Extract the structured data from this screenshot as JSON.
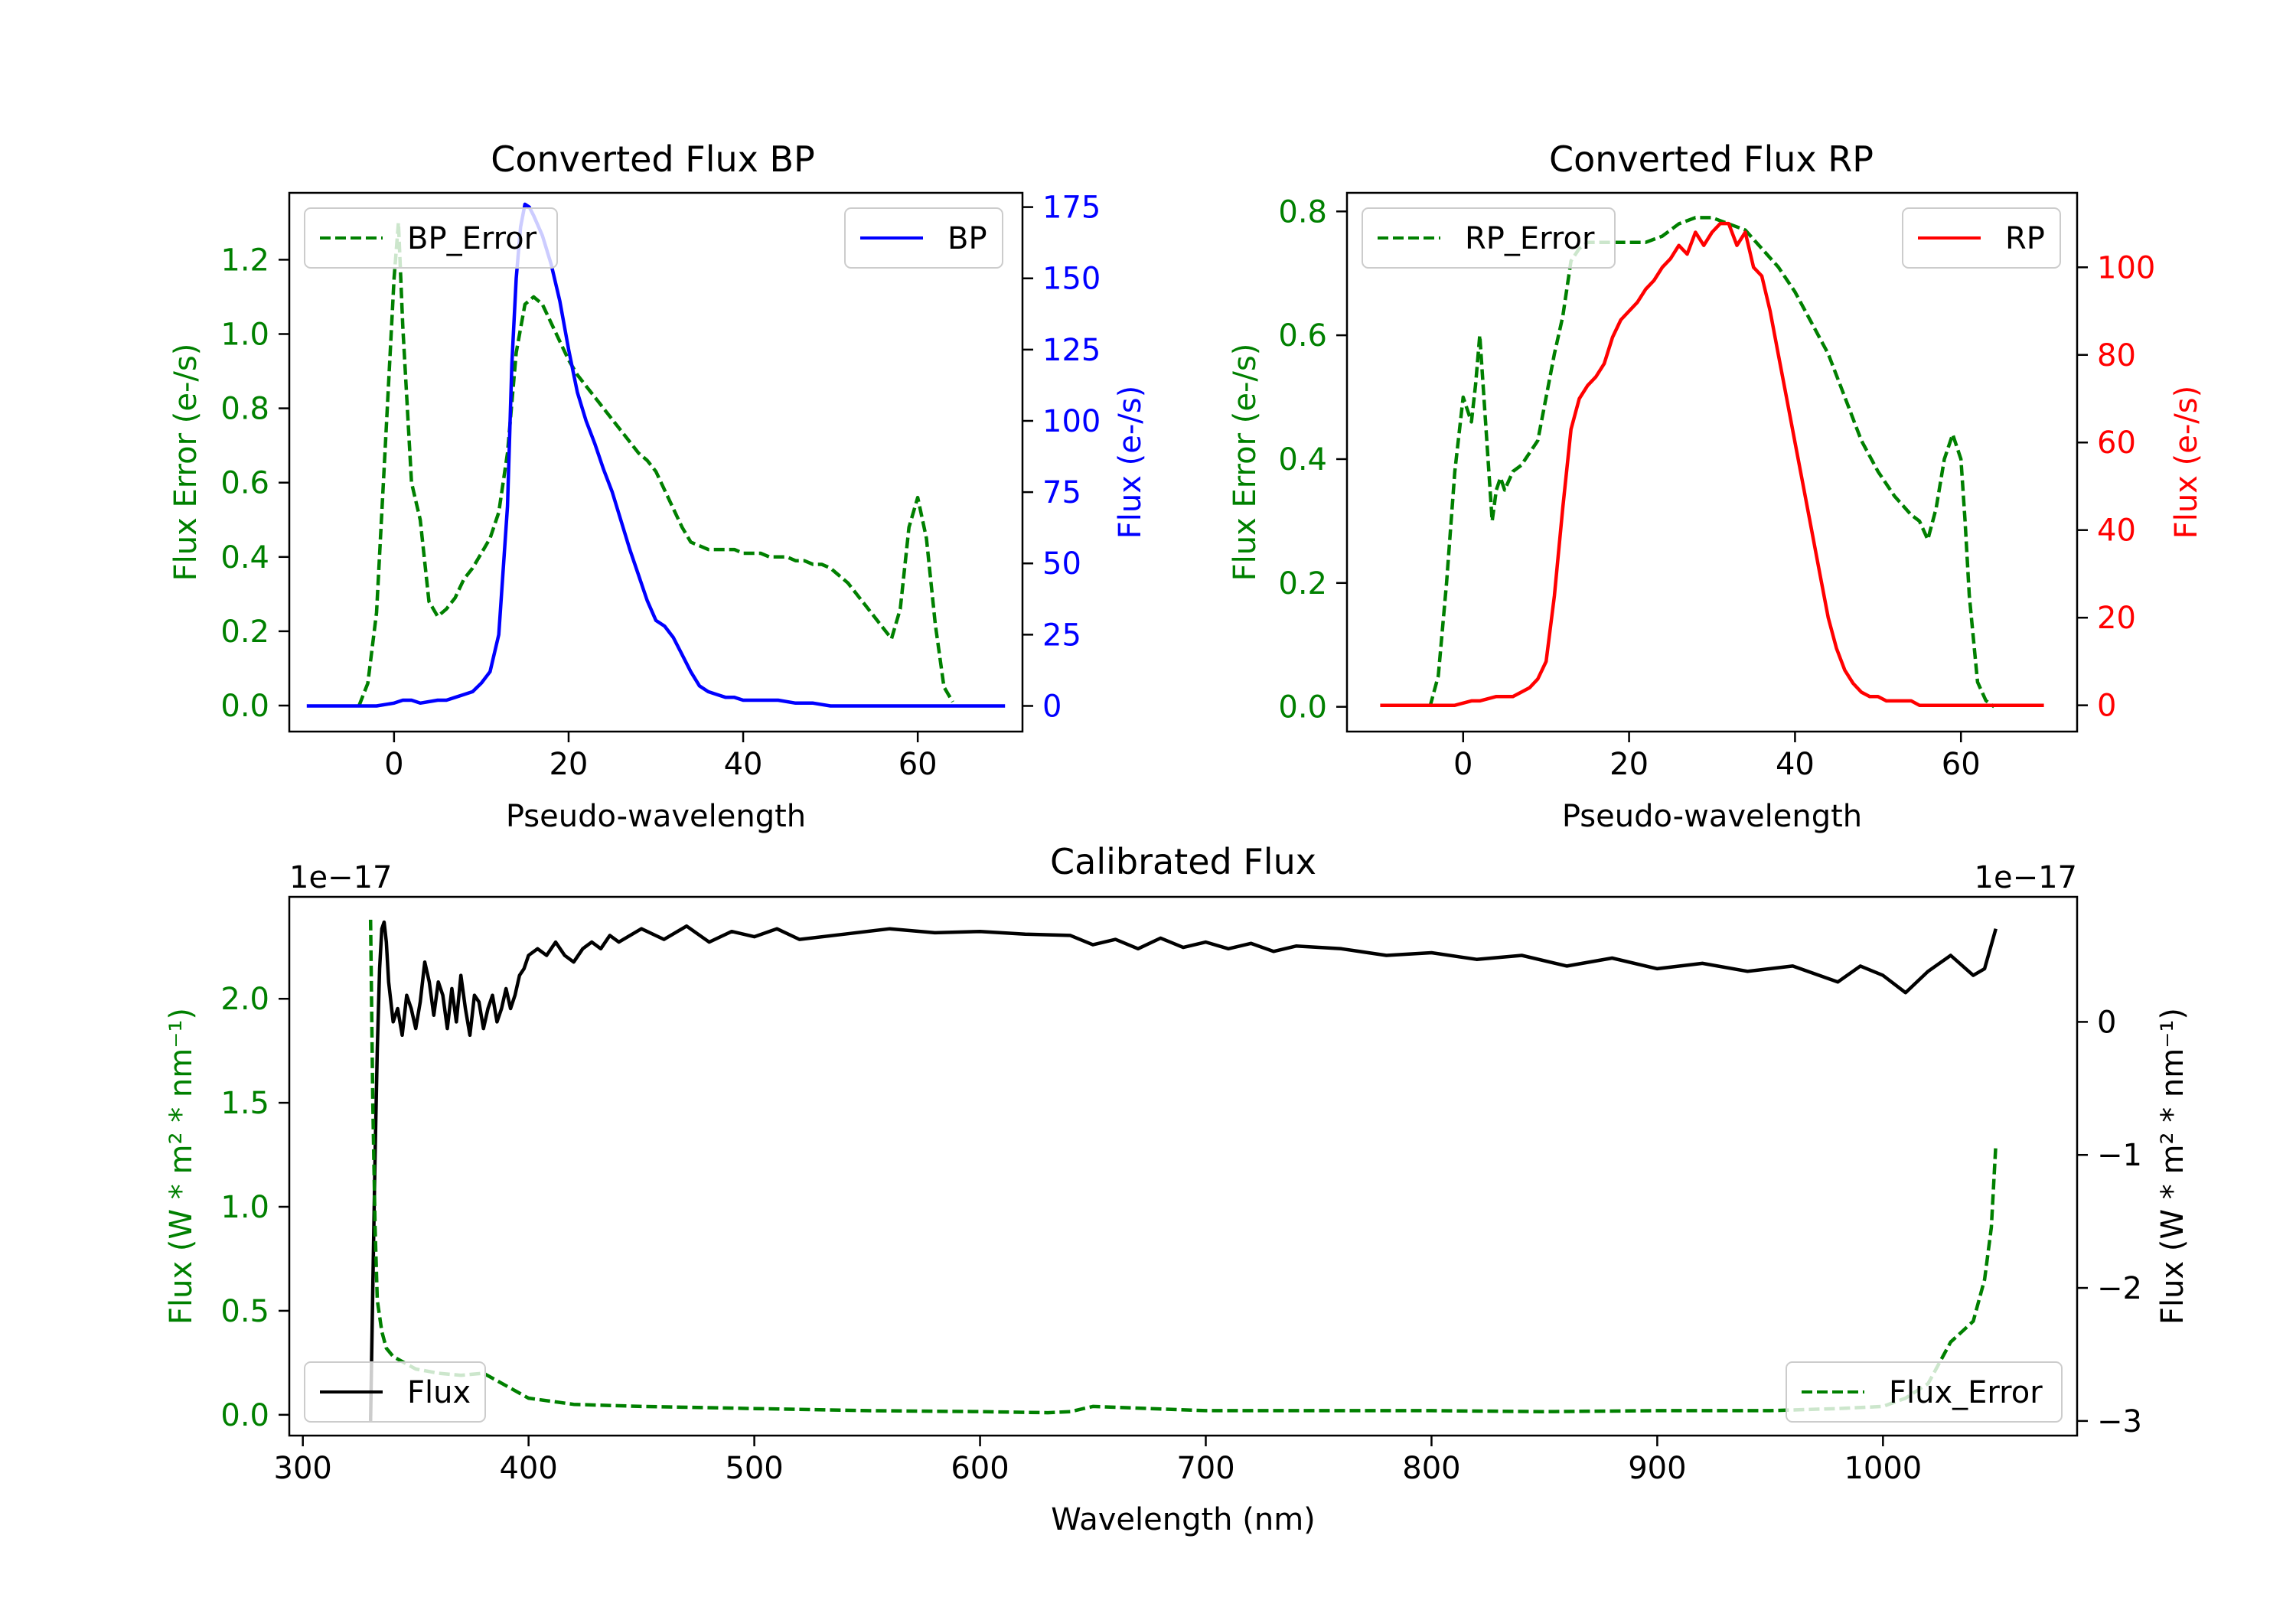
{
  "chart_data": [
    {
      "type": "line",
      "title": "Converted Flux BP",
      "xlabel": "Pseudo-wavelength",
      "ylabel_left": "Flux Error (e-/s)",
      "ylabel_right": "Flux (e-/s)",
      "xlim": [
        -12,
        72
      ],
      "ylim_left": [
        -0.07,
        1.38
      ],
      "ylim_right": [
        -9,
        180
      ],
      "xticks": [
        0,
        20,
        40,
        60
      ],
      "yticks_left": [
        0.0,
        0.2,
        0.4,
        0.6,
        0.8,
        1.0,
        1.2
      ],
      "yticks_right": [
        0,
        25,
        50,
        75,
        100,
        125,
        150,
        175
      ],
      "legend_left_label": "BP_Error",
      "legend_right_label": "BP",
      "colors": {
        "error": "#008000",
        "flux": "#0000ff"
      },
      "series": [
        {
          "name": "BP_Error",
          "axis": "left",
          "style": "dashed",
          "x": [
            -4,
            -3,
            -2,
            -1,
            0,
            0.5,
            1,
            2,
            3,
            4,
            5,
            6,
            7,
            8,
            9,
            10,
            11,
            12,
            13,
            14,
            15,
            16,
            17,
            18,
            19,
            20,
            21,
            22,
            23,
            24,
            25,
            26,
            27,
            28,
            29,
            30,
            31,
            32,
            33,
            34,
            35,
            36,
            37,
            38,
            39,
            40,
            41,
            42,
            43,
            44,
            45,
            46,
            47,
            48,
            49,
            50,
            51,
            52,
            53,
            54,
            55,
            56,
            57,
            58,
            59,
            60,
            61,
            62,
            63,
            64
          ],
          "y": [
            0.0,
            0.06,
            0.25,
            0.7,
            1.15,
            1.3,
            1.02,
            0.6,
            0.5,
            0.28,
            0.24,
            0.26,
            0.29,
            0.34,
            0.37,
            0.41,
            0.45,
            0.52,
            0.68,
            0.95,
            1.08,
            1.1,
            1.08,
            1.03,
            0.98,
            0.93,
            0.89,
            0.86,
            0.83,
            0.8,
            0.77,
            0.74,
            0.71,
            0.68,
            0.66,
            0.63,
            0.58,
            0.53,
            0.48,
            0.44,
            0.43,
            0.42,
            0.42,
            0.42,
            0.42,
            0.41,
            0.41,
            0.41,
            0.4,
            0.4,
            0.4,
            0.39,
            0.39,
            0.38,
            0.38,
            0.37,
            0.35,
            0.33,
            0.3,
            0.27,
            0.24,
            0.21,
            0.18,
            0.26,
            0.48,
            0.56,
            0.45,
            0.22,
            0.05,
            0.01
          ]
        },
        {
          "name": "BP",
          "axis": "right",
          "style": "solid",
          "x": [
            -10,
            -6,
            -2,
            0,
            1,
            2,
            3,
            5,
            6,
            7,
            8,
            9,
            10,
            11,
            12,
            13,
            13.5,
            14,
            14.5,
            15,
            15.5,
            16,
            17,
            18,
            19,
            20,
            21,
            22,
            23,
            24,
            25,
            26,
            27,
            28,
            29,
            30,
            31,
            32,
            33,
            34,
            35,
            36,
            37,
            38,
            39,
            40,
            42,
            44,
            46,
            48,
            50,
            52,
            55,
            58,
            62,
            66,
            70
          ],
          "y": [
            0,
            0,
            0,
            1,
            2,
            2,
            1,
            2,
            2,
            3,
            4,
            5,
            8,
            12,
            25,
            70,
            120,
            150,
            168,
            176,
            175,
            172,
            165,
            155,
            142,
            125,
            110,
            100,
            92,
            83,
            75,
            65,
            55,
            46,
            37,
            30,
            28,
            24,
            18,
            12,
            7,
            5,
            4,
            3,
            3,
            2,
            2,
            2,
            1,
            1,
            0,
            0,
            0,
            0,
            0,
            0,
            0
          ]
        }
      ]
    },
    {
      "type": "line",
      "title": "Converted Flux RP",
      "xlabel": "Pseudo-wavelength",
      "ylabel_left": "Flux Error (e-/s)",
      "ylabel_right": "Flux (e-/s)",
      "xlim": [
        -14,
        74
      ],
      "ylim_left": [
        -0.04,
        0.83
      ],
      "ylim_right": [
        -6,
        117
      ],
      "xticks": [
        0,
        20,
        40,
        60
      ],
      "yticks_left": [
        0.0,
        0.2,
        0.4,
        0.6,
        0.8
      ],
      "yticks_right": [
        0,
        20,
        40,
        60,
        80,
        100
      ],
      "legend_left_label": "RP_Error",
      "legend_right_label": "RP",
      "colors": {
        "error": "#008000",
        "flux": "#ff0000"
      },
      "series": [
        {
          "name": "RP_Error",
          "axis": "left",
          "style": "dashed",
          "x": [
            -4,
            -3,
            -2,
            -1,
            0,
            0.5,
            1,
            1.5,
            2,
            2.5,
            3,
            3.5,
            4,
            4.5,
            5,
            6,
            7,
            8,
            9,
            10,
            11,
            12,
            13,
            14,
            15,
            16,
            17,
            18,
            19,
            20,
            22,
            24,
            26,
            28,
            30,
            32,
            34,
            36,
            38,
            40,
            42,
            44,
            46,
            48,
            50,
            52,
            54,
            55,
            56,
            57,
            58,
            59,
            60,
            60.5,
            61,
            62,
            63,
            64
          ],
          "y": [
            0.0,
            0.05,
            0.2,
            0.38,
            0.5,
            0.48,
            0.46,
            0.52,
            0.6,
            0.5,
            0.4,
            0.3,
            0.35,
            0.37,
            0.35,
            0.38,
            0.39,
            0.41,
            0.43,
            0.5,
            0.57,
            0.63,
            0.72,
            0.74,
            0.75,
            0.75,
            0.75,
            0.75,
            0.75,
            0.75,
            0.75,
            0.76,
            0.78,
            0.79,
            0.79,
            0.78,
            0.77,
            0.74,
            0.71,
            0.67,
            0.62,
            0.57,
            0.5,
            0.43,
            0.38,
            0.34,
            0.31,
            0.3,
            0.27,
            0.32,
            0.4,
            0.44,
            0.4,
            0.3,
            0.18,
            0.04,
            0.01,
            0.0
          ]
        },
        {
          "name": "RP",
          "axis": "right",
          "style": "solid",
          "x": [
            -10,
            -4,
            -1,
            1,
            2,
            4,
            5,
            6,
            7,
            8,
            9,
            10,
            11,
            12,
            13,
            14,
            15,
            16,
            17,
            18,
            19,
            20,
            21,
            22,
            23,
            24,
            25,
            26,
            27,
            28,
            29,
            30,
            31,
            32,
            33,
            34,
            35,
            36,
            37,
            38,
            39,
            40,
            41,
            42,
            43,
            44,
            45,
            46,
            47,
            48,
            49,
            50,
            51,
            52,
            53,
            54,
            55,
            56,
            58,
            62,
            66,
            70
          ],
          "y": [
            0,
            0,
            0,
            1,
            1,
            2,
            2,
            2,
            3,
            4,
            6,
            10,
            25,
            45,
            63,
            70,
            73,
            75,
            78,
            84,
            88,
            90,
            92,
            95,
            97,
            100,
            102,
            105,
            103,
            108,
            105,
            108,
            110,
            110,
            105,
            108,
            100,
            98,
            90,
            80,
            70,
            60,
            50,
            40,
            30,
            20,
            13,
            8,
            5,
            3,
            2,
            2,
            1,
            1,
            1,
            1,
            0,
            0,
            0,
            0,
            0,
            0
          ]
        }
      ]
    },
    {
      "type": "line",
      "title": "Calibrated Flux",
      "xlabel": "Wavelength (nm)",
      "ylabel_left": "Flux (W * m² * nm⁻¹)",
      "ylabel_right": "Flux (W * m² * nm⁻¹)",
      "offset_left": "1e−17",
      "offset_right": "1e−17",
      "xlim": [
        294,
        1086
      ],
      "ylim_left": [
        -0.1,
        2.49
      ],
      "ylim_right": [
        -3.11,
        0.94
      ],
      "xticks": [
        300,
        400,
        500,
        600,
        700,
        800,
        900,
        1000
      ],
      "yticks_left": [
        0.0,
        0.5,
        1.0,
        1.5,
        2.0
      ],
      "yticks_right": [
        -3,
        -2,
        -1,
        0
      ],
      "legend_left_label": "Flux",
      "legend_right_label": "Flux_Error",
      "colors": {
        "flux": "#000000",
        "error": "#008000"
      },
      "series": [
        {
          "name": "Flux",
          "axis": "right",
          "style": "solid",
          "x": [
            330,
            331,
            332,
            333,
            334,
            335,
            336,
            337,
            338,
            340,
            342,
            344,
            346,
            348,
            350,
            352,
            354,
            356,
            358,
            360,
            362,
            364,
            366,
            368,
            370,
            372,
            374,
            376,
            378,
            380,
            382,
            384,
            386,
            388,
            390,
            392,
            394,
            396,
            398,
            400,
            404,
            408,
            412,
            416,
            420,
            424,
            428,
            432,
            436,
            440,
            450,
            460,
            470,
            480,
            490,
            500,
            510,
            520,
            540,
            560,
            580,
            600,
            620,
            640,
            650,
            660,
            670,
            680,
            690,
            700,
            710,
            720,
            730,
            740,
            760,
            780,
            800,
            820,
            840,
            860,
            880,
            900,
            920,
            940,
            960,
            980,
            990,
            1000,
            1010,
            1020,
            1030,
            1040,
            1045,
            1050
          ],
          "y": [
            -3.0,
            -2.0,
            -1.0,
            -0.2,
            0.4,
            0.7,
            0.75,
            0.6,
            0.3,
            0.0,
            0.1,
            -0.1,
            0.2,
            0.1,
            -0.05,
            0.15,
            0.45,
            0.3,
            0.05,
            0.3,
            0.2,
            -0.05,
            0.25,
            0.0,
            0.35,
            0.1,
            -0.1,
            0.2,
            0.15,
            -0.05,
            0.1,
            0.2,
            0.0,
            0.1,
            0.25,
            0.1,
            0.2,
            0.35,
            0.4,
            0.5,
            0.55,
            0.5,
            0.6,
            0.5,
            0.45,
            0.55,
            0.6,
            0.55,
            0.65,
            0.6,
            0.7,
            0.62,
            0.72,
            0.6,
            0.68,
            0.64,
            0.7,
            0.62,
            0.66,
            0.7,
            0.67,
            0.68,
            0.66,
            0.65,
            0.58,
            0.62,
            0.55,
            0.63,
            0.56,
            0.6,
            0.55,
            0.59,
            0.53,
            0.57,
            0.55,
            0.5,
            0.52,
            0.47,
            0.5,
            0.42,
            0.48,
            0.4,
            0.44,
            0.38,
            0.42,
            0.3,
            0.42,
            0.35,
            0.22,
            0.38,
            0.5,
            0.35,
            0.4,
            0.7
          ]
        },
        {
          "name": "Flux_Error",
          "axis": "left",
          "style": "dashed",
          "x": [
            330,
            331,
            332,
            333,
            335,
            337,
            340,
            345,
            350,
            355,
            360,
            370,
            380,
            385,
            390,
            400,
            420,
            450,
            500,
            550,
            600,
            630,
            640,
            650,
            700,
            750,
            800,
            850,
            900,
            950,
            980,
            1000,
            1010,
            1020,
            1025,
            1030,
            1035,
            1040,
            1045,
            1048,
            1050
          ],
          "y": [
            2.38,
            1.5,
            0.9,
            0.55,
            0.4,
            0.32,
            0.28,
            0.25,
            0.22,
            0.21,
            0.2,
            0.19,
            0.2,
            0.17,
            0.14,
            0.08,
            0.05,
            0.04,
            0.03,
            0.02,
            0.015,
            0.01,
            0.015,
            0.04,
            0.02,
            0.02,
            0.02,
            0.015,
            0.02,
            0.02,
            0.03,
            0.04,
            0.08,
            0.15,
            0.25,
            0.35,
            0.4,
            0.45,
            0.65,
            0.9,
            1.3
          ]
        }
      ]
    }
  ]
}
